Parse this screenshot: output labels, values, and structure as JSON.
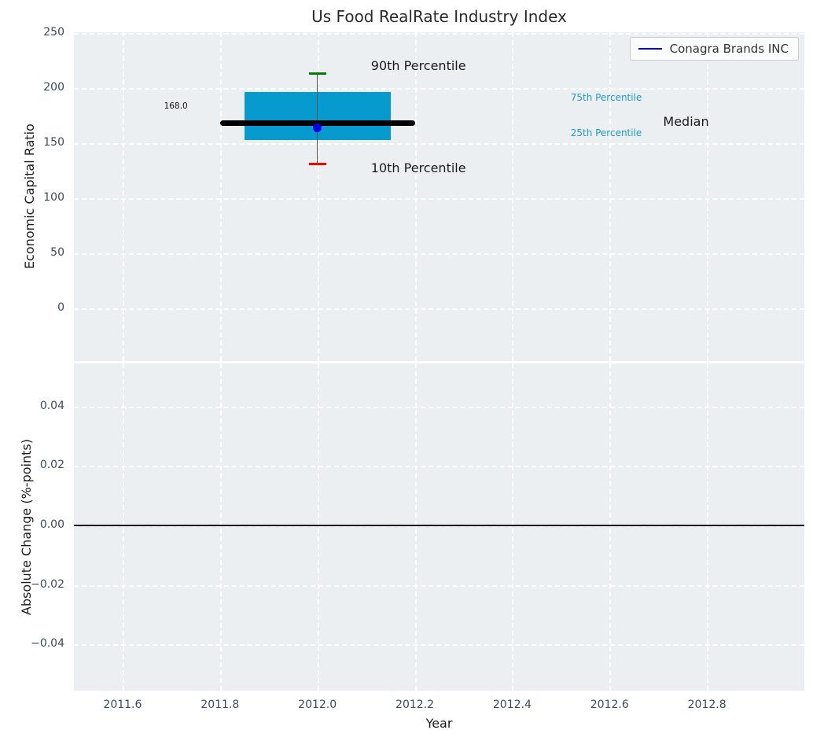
{
  "figure": {
    "title": "Us Food RealRate Industry Index",
    "background": "#ffffff",
    "axes_background": "#eceff1",
    "grid_color": "#ffffff",
    "tick_color": "#3d4b5e"
  },
  "legend": {
    "label": "Conagra Brands INC",
    "line_color": "#0000ee"
  },
  "chart_data": [
    {
      "type": "box",
      "name": "economic-capital-ratio-panel",
      "ylabel": "Economic Capital Ratio",
      "xlabel": "",
      "xlim": [
        2011.5,
        2013.0
      ],
      "ylim": [
        -48,
        250.5
      ],
      "grid": "dashed-white",
      "show_xtick_labels": false,
      "xticks": [
        {
          "v": 2011.6,
          "label": "2011.6"
        },
        {
          "v": 2011.8,
          "label": "2011.8"
        },
        {
          "v": 2012.0,
          "label": "2012.0"
        },
        {
          "v": 2012.2,
          "label": "2012.2"
        },
        {
          "v": 2012.4,
          "label": "2012.4"
        },
        {
          "v": 2012.6,
          "label": "2012.6"
        },
        {
          "v": 2012.8,
          "label": "2012.8"
        }
      ],
      "yticks": [
        {
          "v": 250,
          "label": "250"
        },
        {
          "v": 200,
          "label": "200"
        },
        {
          "v": 150,
          "label": "150"
        },
        {
          "v": 100,
          "label": "100"
        },
        {
          "v": 50,
          "label": "50"
        },
        {
          "v": 0,
          "label": "0"
        }
      ],
      "box": {
        "x": 2012.0,
        "p10": 131,
        "p25": 153,
        "median": 168,
        "p75": 196,
        "p90": 213,
        "box_x_range": [
          2011.85,
          2012.15
        ],
        "median_x_range": [
          2011.8,
          2012.2
        ],
        "box_color": "#069acf",
        "median_color": "#000000",
        "whisker_color": "#555555",
        "p90_cap_color": "#008000",
        "p10_cap_color": "#ff0000"
      },
      "series": [
        {
          "name": "Conagra Brands INC",
          "x": 2012.0,
          "value": 164,
          "marker_color": "#0000ee"
        }
      ],
      "annotations": [
        {
          "id": "90th-percentile",
          "text": "90th Percentile",
          "x": 2012.11,
          "y": 220,
          "size": 16,
          "color": "#1a1a1a"
        },
        {
          "id": "10th-percentile",
          "text": "10th Percentile",
          "x": 2012.11,
          "y": 127,
          "size": 16,
          "color": "#1a1a1a"
        },
        {
          "id": "75th-percentile",
          "text": "75th Percentile",
          "x": 2012.52,
          "y": 191,
          "size": 12,
          "color": "#1c9bc9"
        },
        {
          "id": "25th-percentile",
          "text": "25th Percentile",
          "x": 2012.52,
          "y": 159,
          "size": 12,
          "color": "#1c9bc9"
        },
        {
          "id": "median",
          "text": "Median",
          "x": 2012.71,
          "y": 169,
          "size": 16,
          "color": "#1a1a1a"
        },
        {
          "id": "median-value",
          "text": "168.0",
          "x": 2011.685,
          "y": 183,
          "size": 10.5,
          "color": "#111111"
        }
      ]
    },
    {
      "type": "line",
      "name": "absolute-change-panel",
      "ylabel": "Absolute Change (%-points)",
      "xlabel": "Year",
      "xlim": [
        2011.5,
        2013.0
      ],
      "ylim": [
        -0.0555,
        0.0545
      ],
      "grid": "dashed-white",
      "show_xtick_labels": true,
      "xticks": [
        {
          "v": 2011.6,
          "label": "2011.6"
        },
        {
          "v": 2011.8,
          "label": "2011.8"
        },
        {
          "v": 2012.0,
          "label": "2012.0"
        },
        {
          "v": 2012.2,
          "label": "2012.2"
        },
        {
          "v": 2012.4,
          "label": "2012.4"
        },
        {
          "v": 2012.6,
          "label": "2012.6"
        },
        {
          "v": 2012.8,
          "label": "2012.8"
        }
      ],
      "yticks": [
        {
          "v": 0.04,
          "label": "0.04"
        },
        {
          "v": 0.02,
          "label": "0.02"
        },
        {
          "v": 0.0,
          "label": "0.00"
        },
        {
          "v": -0.02,
          "label": "−0.02"
        },
        {
          "v": -0.04,
          "label": "−0.04"
        }
      ],
      "zero_line": {
        "y": 0,
        "color": "#000000"
      }
    }
  ]
}
